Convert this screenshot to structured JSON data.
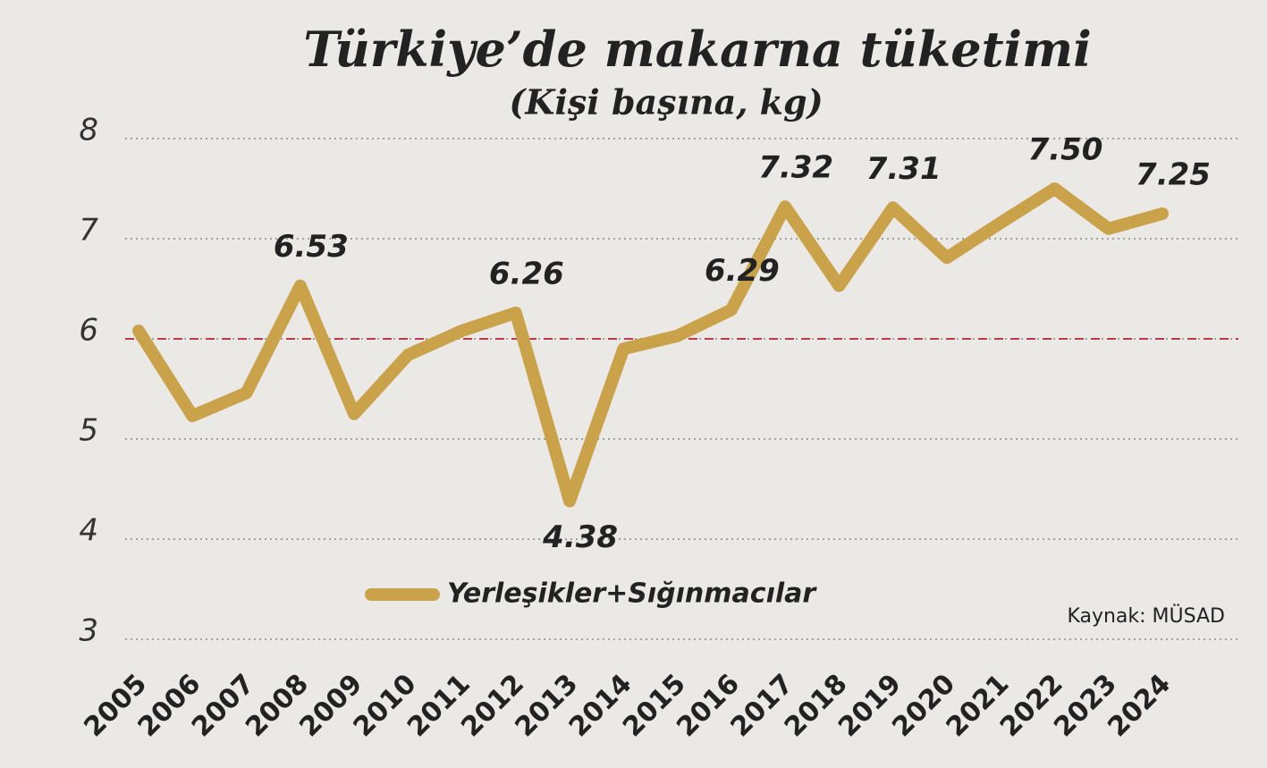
{
  "chart_data": {
    "type": "line",
    "title": "Türkiye’de makarna tüketimi",
    "subtitle": "(Kişi başına, kg)",
    "source": "Kaynak: MÜSAD",
    "categories": [
      "2005",
      "2006",
      "2007",
      "2008",
      "2009",
      "2010",
      "2011",
      "2012",
      "2013",
      "2014",
      "2015",
      "2016",
      "2017",
      "2018",
      "2019",
      "2020",
      "2021",
      "2022",
      "2023",
      "2024"
    ],
    "series": [
      {
        "name": "Yerleşikler+Sığınmacılar",
        "color": "#c9a24a",
        "values": [
          6.08,
          5.23,
          5.46,
          6.53,
          5.25,
          5.84,
          6.08,
          6.26,
          4.38,
          5.9,
          6.03,
          6.29,
          7.32,
          6.53,
          7.31,
          6.81,
          7.16,
          7.5,
          7.1,
          7.25
        ],
        "value_labels": [
          null,
          null,
          null,
          "6.53",
          null,
          null,
          null,
          "6.26",
          "4.38",
          null,
          null,
          "6.29",
          "7.32",
          null,
          "7.31",
          null,
          null,
          "7.50",
          null,
          "7.25"
        ]
      }
    ],
    "ylim": [
      3,
      8
    ],
    "yticks": [
      3,
      4,
      5,
      6,
      7,
      8
    ],
    "grid": true,
    "reference_line": {
      "value": 6,
      "color": "#c0394a"
    }
  }
}
